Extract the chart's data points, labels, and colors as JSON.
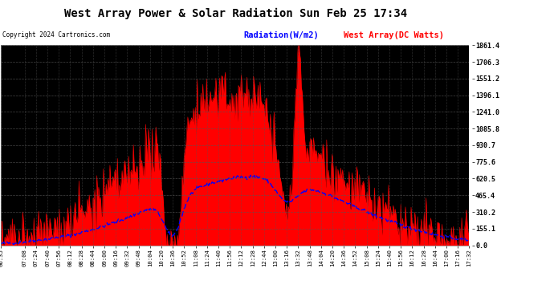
{
  "title": "West Array Power & Solar Radiation Sun Feb 25 17:34",
  "copyright_text": "Copyright 2024 Cartronics.com",
  "legend_radiation": "Radiation(W/m2)",
  "legend_west_array": "West Array(DC Watts)",
  "y_max": 1861.4,
  "y_min": 0.0,
  "y_ticks": [
    0.0,
    155.1,
    310.2,
    465.4,
    620.5,
    775.6,
    930.7,
    1085.8,
    1241.0,
    1396.1,
    1551.2,
    1706.3,
    1861.4
  ],
  "background_color": "#000000",
  "grid_color": "#555555",
  "radiation_color": "#0000ff",
  "west_array_color": "#ff0000",
  "x_tick_labels": [
    "06:35",
    "07:08",
    "07:24",
    "07:40",
    "07:56",
    "08:12",
    "08:28",
    "08:44",
    "09:00",
    "09:16",
    "09:32",
    "09:48",
    "10:04",
    "10:20",
    "10:36",
    "10:52",
    "11:08",
    "11:24",
    "11:40",
    "11:56",
    "12:12",
    "12:28",
    "12:44",
    "13:00",
    "13:16",
    "13:32",
    "13:48",
    "14:04",
    "14:20",
    "14:36",
    "14:52",
    "15:08",
    "15:24",
    "15:40",
    "15:56",
    "16:12",
    "16:28",
    "16:44",
    "17:00",
    "17:16",
    "17:32"
  ]
}
